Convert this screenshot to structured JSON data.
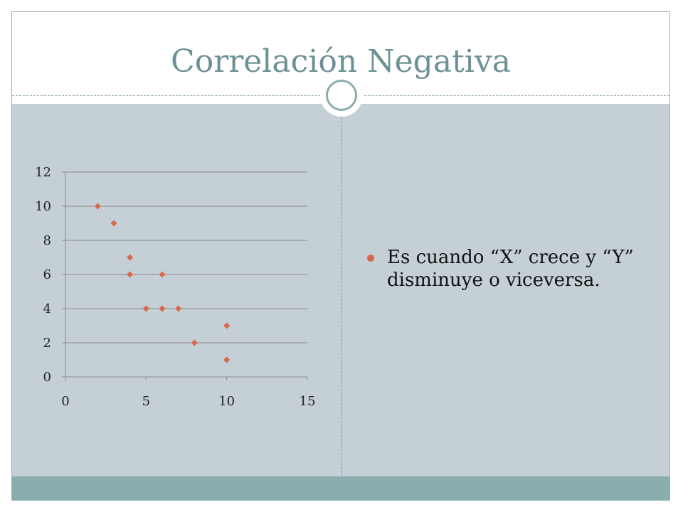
{
  "slide": {
    "title": "Correlación Negativa",
    "bullets": [
      "Es cuando “X” crece y “Y” disminuye o viceversa."
    ]
  },
  "colors": {
    "title": "#6d9196",
    "content_bg": "#c5cfd6",
    "footer_band": "#8aadad",
    "marker": "#d9684b",
    "bullet": "#d9684b"
  },
  "chart_data": {
    "type": "scatter",
    "title": "",
    "xlabel": "",
    "ylabel": "",
    "xlim": [
      0,
      15
    ],
    "ylim": [
      0,
      12
    ],
    "x_ticks": [
      0,
      5,
      10,
      15
    ],
    "y_ticks": [
      0,
      2,
      4,
      6,
      8,
      10,
      12
    ],
    "grid": "horizontal",
    "legend": "none",
    "marker": "diamond",
    "points": [
      {
        "x": 2,
        "y": 10
      },
      {
        "x": 3,
        "y": 9
      },
      {
        "x": 4,
        "y": 7
      },
      {
        "x": 4,
        "y": 6
      },
      {
        "x": 6,
        "y": 6
      },
      {
        "x": 5,
        "y": 4
      },
      {
        "x": 6,
        "y": 4
      },
      {
        "x": 7,
        "y": 4
      },
      {
        "x": 10,
        "y": 3
      },
      {
        "x": 8,
        "y": 2
      },
      {
        "x": 10,
        "y": 1
      }
    ]
  }
}
